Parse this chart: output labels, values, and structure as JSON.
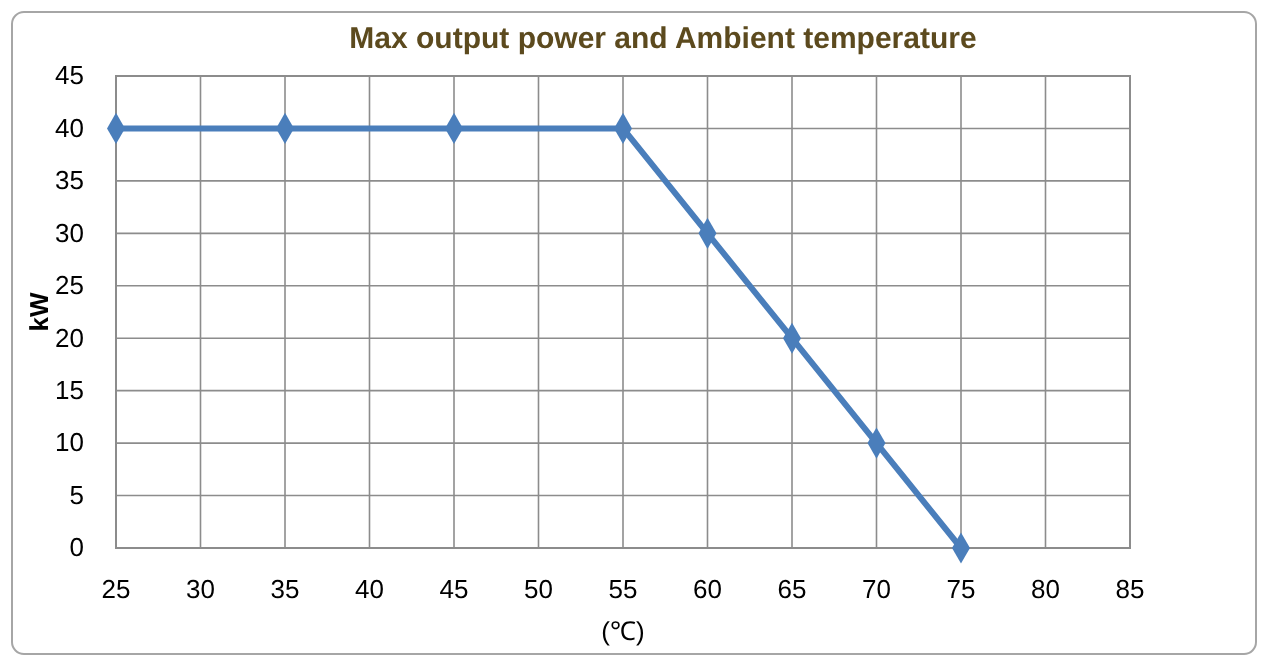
{
  "chart_data": {
    "type": "line",
    "title": "Max output power and Ambient temperature",
    "xlabel": "(℃)",
    "ylabel": "kW",
    "x": [
      25,
      35,
      45,
      55,
      60,
      65,
      70,
      75
    ],
    "series": [
      {
        "color": "#4a7ebb",
        "values": [
          40,
          40,
          40,
          40,
          30,
          20,
          10,
          0
        ]
      }
    ],
    "xlim": [
      25,
      85
    ],
    "xticks": [
      25,
      30,
      35,
      40,
      45,
      50,
      55,
      60,
      65,
      70,
      75,
      80,
      85
    ],
    "ylim": [
      0,
      45
    ],
    "yticks": [
      0,
      5,
      10,
      15,
      20,
      25,
      30,
      35,
      40,
      45
    ],
    "grid": true,
    "marker": "diamond",
    "line_style": "solid"
  }
}
